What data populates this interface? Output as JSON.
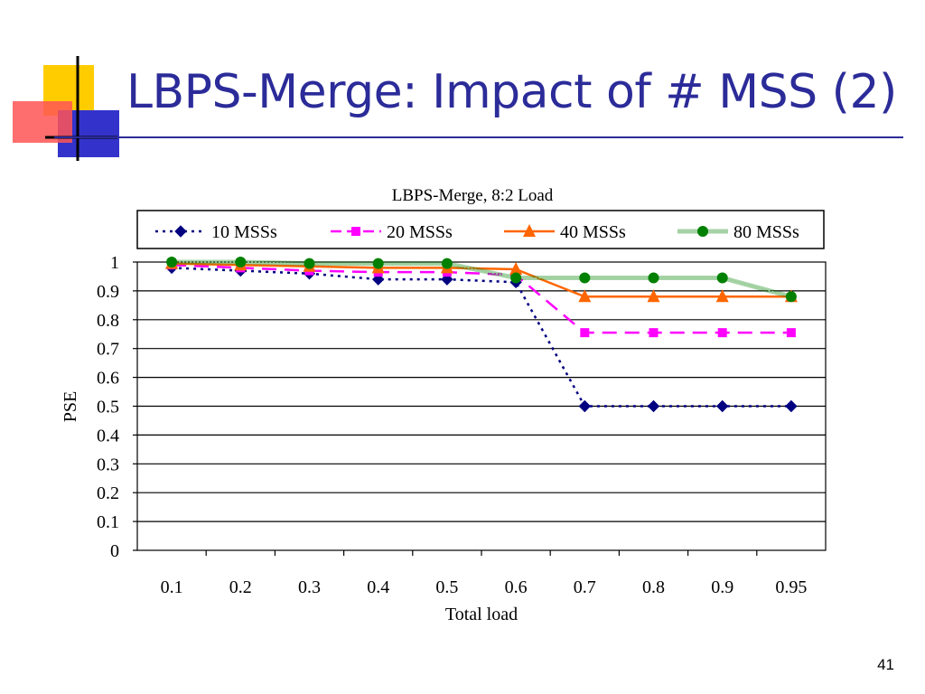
{
  "slide": {
    "title": "LBPS-Merge: Impact of # MSS (2)",
    "page_number": "41",
    "title_color": "#2b2b99"
  },
  "chart_data": {
    "type": "line",
    "title": "LBPS-Merge, 8:2 Load",
    "xlabel": "Total load",
    "ylabel": "PSE",
    "categories": [
      "0.1",
      "0.2",
      "0.3",
      "0.4",
      "0.5",
      "0.6",
      "0.7",
      "0.8",
      "0.9",
      "0.95"
    ],
    "ylim": [
      0,
      1
    ],
    "yticks": [
      "0",
      "0.1",
      "0.2",
      "0.3",
      "0.4",
      "0.5",
      "0.6",
      "0.7",
      "0.8",
      "0.9",
      "1"
    ],
    "grid": true,
    "legend_position": "top",
    "series": [
      {
        "name": "10 MSSs",
        "values": [
          0.98,
          0.97,
          0.96,
          0.94,
          0.94,
          0.93,
          0.5,
          0.5,
          0.5,
          0.5
        ],
        "color": "#000080",
        "marker": "diamond",
        "line_style": "dotted"
      },
      {
        "name": "20 MSSs",
        "values": [
          0.99,
          0.98,
          0.97,
          0.965,
          0.965,
          0.955,
          0.755,
          0.755,
          0.755,
          0.755
        ],
        "color": "#ff00ff",
        "marker": "square",
        "line_style": "dashed"
      },
      {
        "name": "40 MSSs",
        "values": [
          0.995,
          0.99,
          0.985,
          0.98,
          0.98,
          0.975,
          0.88,
          0.88,
          0.88,
          0.88
        ],
        "color": "#ff6600",
        "marker": "triangle",
        "line_style": "solid"
      },
      {
        "name": "80 MSSs",
        "values": [
          1.0,
          1.0,
          0.995,
          0.995,
          0.995,
          0.945,
          0.945,
          0.945,
          0.945,
          0.88
        ],
        "color": "#008000",
        "marker": "circle",
        "line_style": "textured"
      }
    ]
  }
}
